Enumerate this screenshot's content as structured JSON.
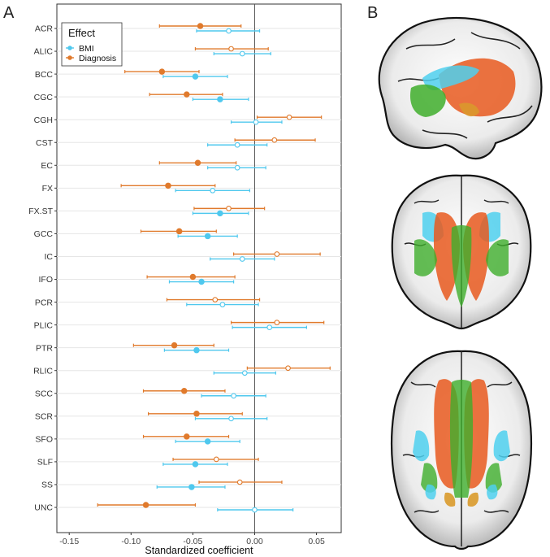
{
  "panels": {
    "a_label": "A",
    "b_label": "B"
  },
  "colors": {
    "bmi": "#4fc8ee",
    "diagnosis": "#e07a2c",
    "grid": "#e6e6e6",
    "zero_line": "#555555",
    "axis": "#333333"
  },
  "brain_views": [
    {
      "name": "sagittal-view"
    },
    {
      "name": "coronal-view"
    },
    {
      "name": "axial-view"
    }
  ],
  "chart_data": {
    "type": "scatter",
    "subtype": "forest-plot",
    "title": "",
    "xlabel": "Standardized coefficient",
    "ylabel": "",
    "xlim": [
      -0.16,
      0.07
    ],
    "x_ticks": [
      -0.15,
      -0.1,
      -0.05,
      0.0,
      0.05
    ],
    "x_tick_labels": [
      "-0.15",
      "-0.10",
      "-0.05",
      "0.00",
      "0.05"
    ],
    "zero_line": 0,
    "grid": true,
    "legend": {
      "title": "Effect",
      "placement": "top-left",
      "entries": [
        "BMI",
        "Diagnosis"
      ]
    },
    "categories": [
      "ACR",
      "ALIC",
      "BCC",
      "CGC",
      "CGH",
      "CST",
      "EC",
      "FX",
      "FX.ST",
      "GCC",
      "IC",
      "IFO",
      "PCR",
      "PLIC",
      "PTR",
      "RLIC",
      "SCC",
      "SCR",
      "SFO",
      "SLF",
      "SS",
      "UNC"
    ],
    "series": [
      {
        "name": "Diagnosis",
        "estimate": [
          -0.044,
          -0.019,
          -0.075,
          -0.055,
          0.028,
          0.016,
          -0.046,
          -0.07,
          -0.021,
          -0.061,
          0.018,
          -0.05,
          -0.032,
          0.018,
          -0.065,
          0.027,
          -0.057,
          -0.047,
          -0.055,
          -0.031,
          -0.012,
          -0.088
        ],
        "lower": [
          -0.077,
          -0.048,
          -0.105,
          -0.085,
          0.002,
          -0.016,
          -0.077,
          -0.108,
          -0.049,
          -0.092,
          -0.017,
          -0.087,
          -0.071,
          -0.019,
          -0.098,
          -0.006,
          -0.09,
          -0.086,
          -0.09,
          -0.066,
          -0.045,
          -0.127
        ],
        "upper": [
          -0.011,
          0.011,
          -0.045,
          -0.026,
          0.054,
          0.049,
          -0.015,
          -0.032,
          0.008,
          -0.031,
          0.053,
          -0.016,
          0.004,
          0.056,
          -0.033,
          0.061,
          -0.024,
          -0.01,
          -0.021,
          0.003,
          0.022,
          -0.048
        ],
        "significant": [
          true,
          false,
          true,
          true,
          false,
          false,
          true,
          true,
          false,
          true,
          false,
          true,
          false,
          false,
          true,
          false,
          true,
          true,
          true,
          false,
          false,
          true
        ]
      },
      {
        "name": "BMI",
        "estimate": [
          -0.021,
          -0.01,
          -0.048,
          -0.028,
          0.001,
          -0.014,
          -0.014,
          -0.034,
          -0.028,
          -0.038,
          -0.01,
          -0.043,
          -0.026,
          0.012,
          -0.047,
          -0.008,
          -0.017,
          -0.019,
          -0.038,
          -0.048,
          -0.051,
          0.0
        ],
        "lower": [
          -0.047,
          -0.033,
          -0.074,
          -0.05,
          -0.019,
          -0.038,
          -0.038,
          -0.064,
          -0.05,
          -0.062,
          -0.036,
          -0.069,
          -0.055,
          -0.018,
          -0.073,
          -0.033,
          -0.043,
          -0.048,
          -0.064,
          -0.074,
          -0.079,
          -0.03
        ],
        "upper": [
          0.004,
          0.013,
          -0.022,
          -0.005,
          0.022,
          0.01,
          0.009,
          -0.004,
          -0.005,
          -0.014,
          0.016,
          -0.017,
          0.003,
          0.042,
          -0.021,
          0.017,
          0.009,
          0.01,
          -0.012,
          -0.022,
          -0.024,
          0.031
        ],
        "significant": [
          false,
          false,
          true,
          true,
          false,
          false,
          false,
          false,
          true,
          true,
          false,
          true,
          false,
          false,
          true,
          false,
          false,
          false,
          true,
          true,
          true,
          false
        ]
      }
    ]
  }
}
